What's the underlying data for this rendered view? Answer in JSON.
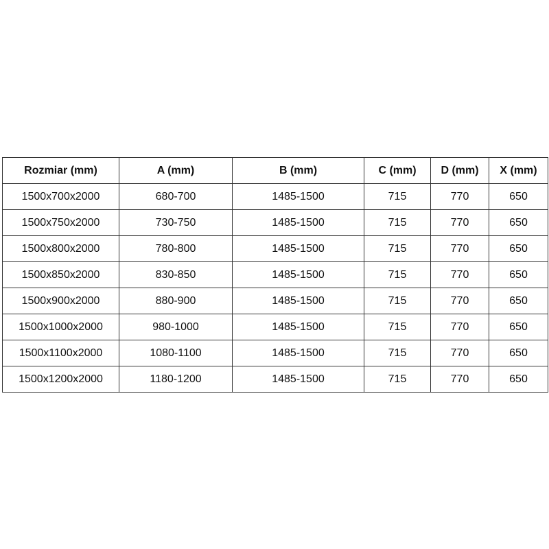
{
  "table": {
    "headers": [
      "Rozmiar (mm)",
      "A (mm)",
      "B (mm)",
      "C (mm)",
      "D (mm)",
      "X (mm)"
    ],
    "rows": [
      [
        "1500x700x2000",
        "680-700",
        "1485-1500",
        "715",
        "770",
        "650"
      ],
      [
        "1500x750x2000",
        "730-750",
        "1485-1500",
        "715",
        "770",
        "650"
      ],
      [
        "1500x800x2000",
        "780-800",
        "1485-1500",
        "715",
        "770",
        "650"
      ],
      [
        "1500x850x2000",
        "830-850",
        "1485-1500",
        "715",
        "770",
        "650"
      ],
      [
        "1500x900x2000",
        "880-900",
        "1485-1500",
        "715",
        "770",
        "650"
      ],
      [
        "1500x1000x2000",
        "980-1000",
        "1485-1500",
        "715",
        "770",
        "650"
      ],
      [
        "1500x1100x2000",
        "1080-1100",
        "1485-1500",
        "715",
        "770",
        "650"
      ],
      [
        "1500x1200x2000",
        "1180-1200",
        "1485-1500",
        "715",
        "770",
        "650"
      ]
    ]
  }
}
